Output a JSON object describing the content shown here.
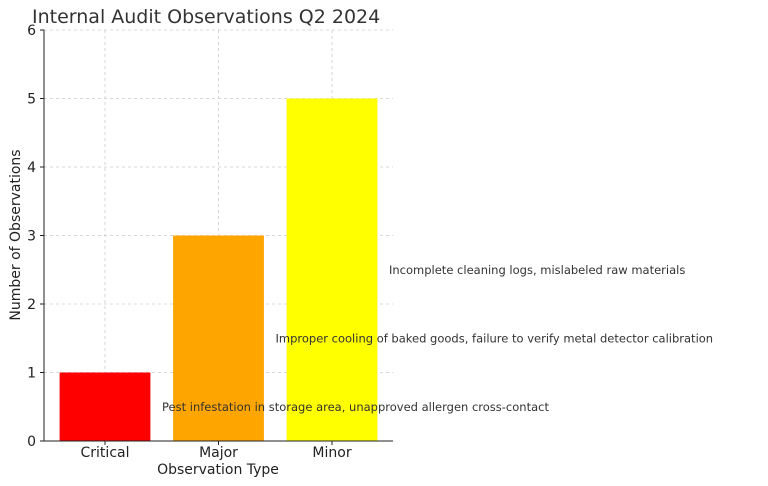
{
  "chart_data": {
    "type": "bar",
    "title": "Internal Audit Observations Q2 2024",
    "xlabel": "Observation Type",
    "ylabel": "Number of Observations",
    "categories": [
      "Critical",
      "Major",
      "Minor"
    ],
    "values": [
      1,
      3,
      5
    ],
    "colors": [
      "#ff0000",
      "#ffa500",
      "#ffff00"
    ],
    "ylim": [
      0,
      6
    ],
    "yticks": [
      0,
      1,
      2,
      3,
      4,
      5,
      6
    ],
    "grid": true,
    "annotations": [
      {
        "text": "Pest infestation in storage area, unapproved allergen cross-contact",
        "category": "Critical",
        "y": 0.5
      },
      {
        "text": "Improper cooling of baked goods, failure to verify metal detector calibration",
        "category": "Major",
        "y": 1.5
      },
      {
        "text": "Incomplete cleaning logs, mislabeled raw materials",
        "category": "Minor",
        "y": 2.5
      }
    ]
  }
}
